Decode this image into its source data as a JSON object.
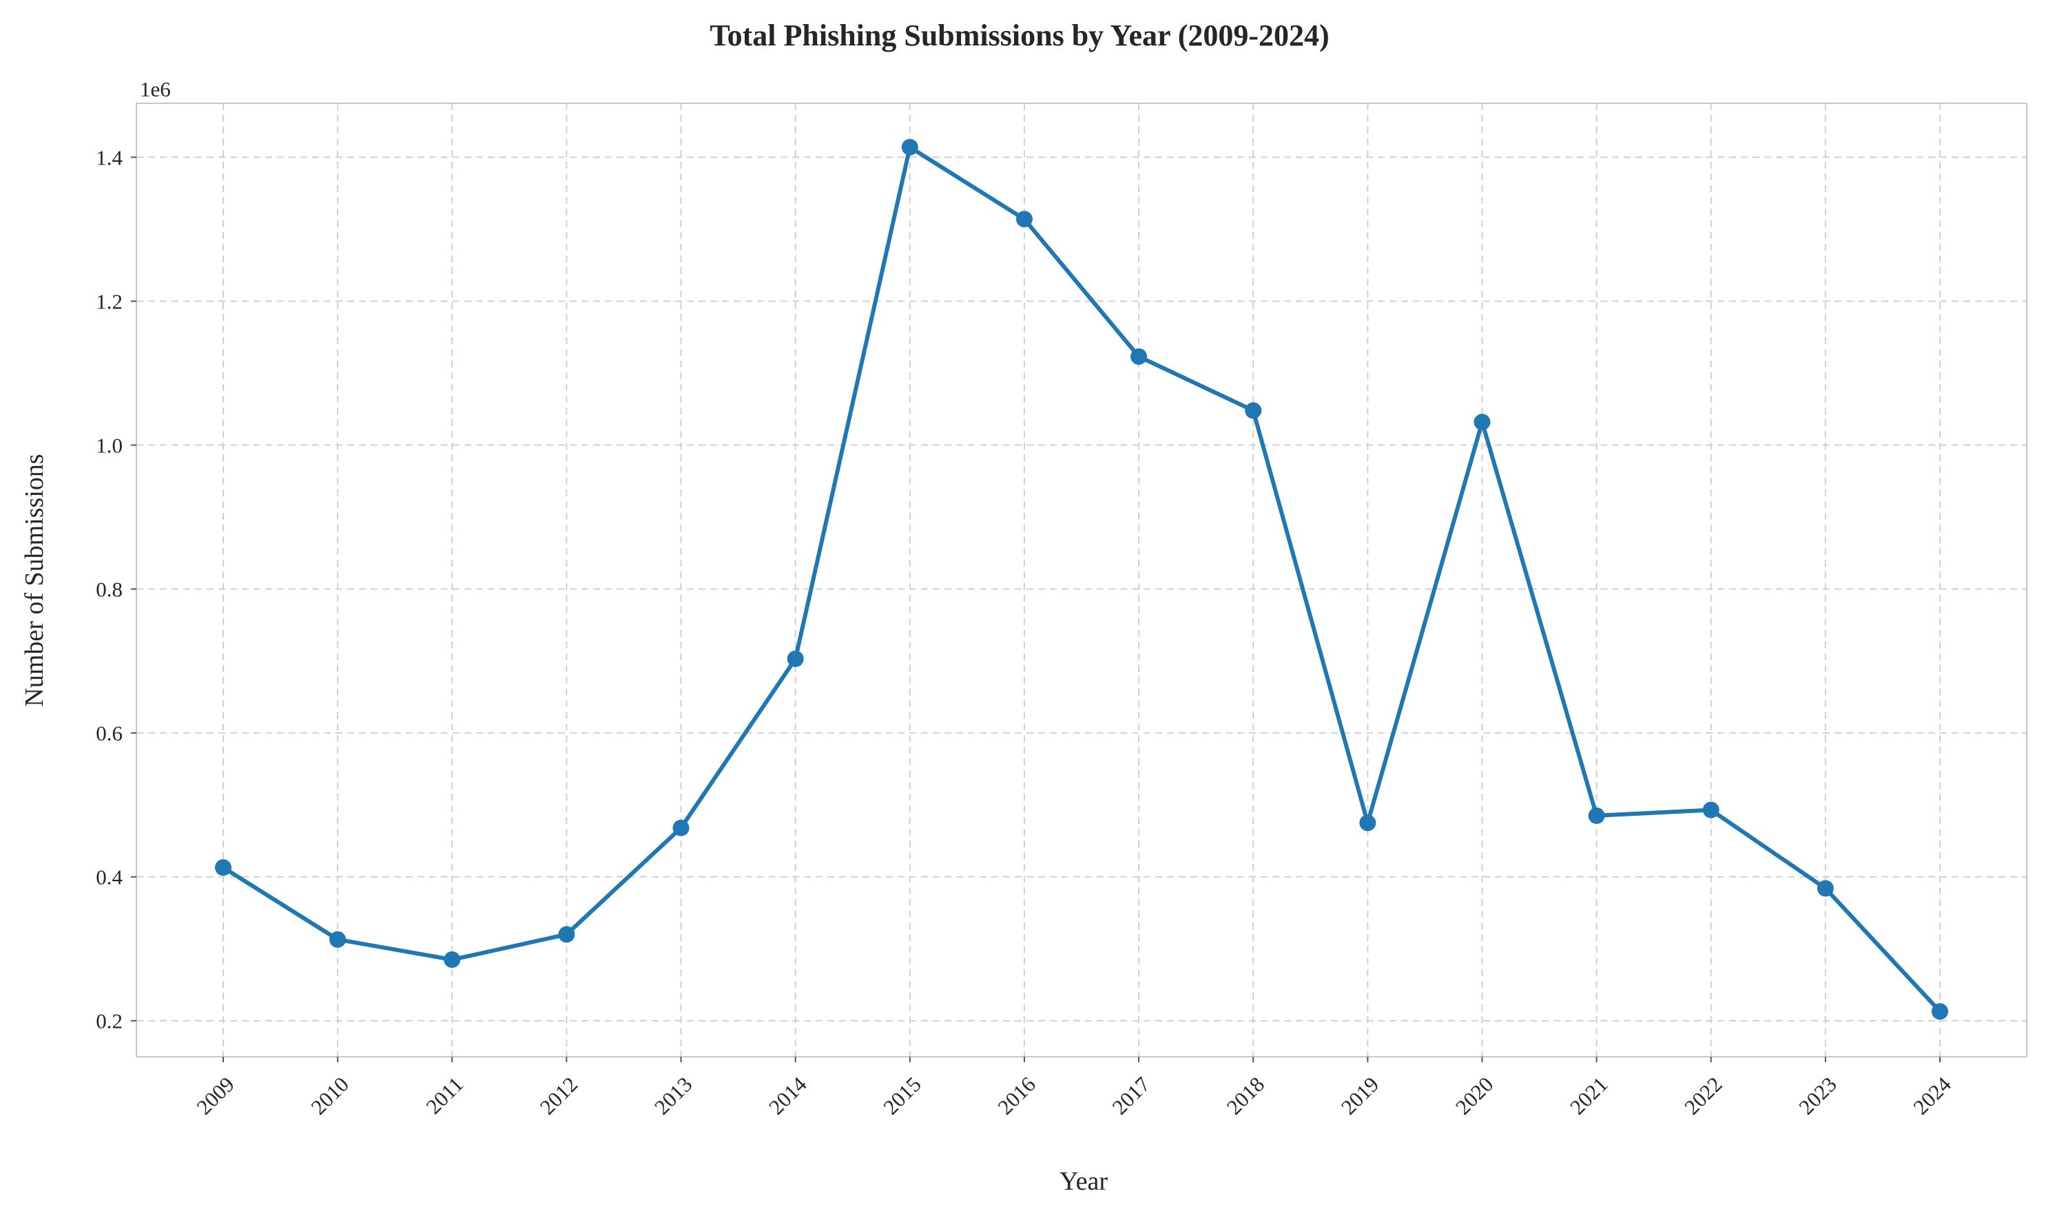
{
  "chart_data": {
    "type": "line",
    "title": "Total Phishing Submissions by Year (2009-2024)",
    "xlabel": "Year",
    "ylabel": "Number of Submissions",
    "y_offset_label": "1e6",
    "y_multiplier": 1000000,
    "x": [
      "2009",
      "2010",
      "2011",
      "2012",
      "2013",
      "2014",
      "2015",
      "2016",
      "2017",
      "2018",
      "2019",
      "2020",
      "2021",
      "2022",
      "2023",
      "2024"
    ],
    "series": [
      {
        "values": [
          413000,
          313000,
          285000,
          320000,
          468000,
          703000,
          1414000,
          1314000,
          1123000,
          1048000,
          475000,
          1032000,
          485000,
          493000,
          384000,
          213000
        ],
        "color": "#1f77b4",
        "marker": "circle"
      }
    ],
    "ylim": [
      150000,
      1475000
    ],
    "y_ticks": [
      200000,
      400000,
      600000,
      800000,
      1000000,
      1200000,
      1400000
    ],
    "y_tick_labels": [
      "0.2",
      "0.4",
      "0.6",
      "0.8",
      "1.0",
      "1.2",
      "1.4"
    ],
    "x_tick_rotation": -45,
    "grid": true,
    "grid_style": "dashed",
    "legend": "none"
  }
}
